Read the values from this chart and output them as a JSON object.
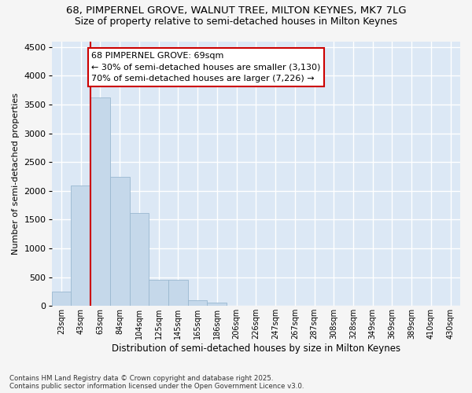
{
  "title1": "68, PIMPERNEL GROVE, WALNUT TREE, MILTON KEYNES, MK7 7LG",
  "title2": "Size of property relative to semi-detached houses in Milton Keynes",
  "xlabel": "Distribution of semi-detached houses by size in Milton Keynes",
  "ylabel": "Number of semi-detached properties",
  "categories": [
    "23sqm",
    "43sqm",
    "63sqm",
    "84sqm",
    "104sqm",
    "125sqm",
    "145sqm",
    "165sqm",
    "186sqm",
    "206sqm",
    "226sqm",
    "247sqm",
    "267sqm",
    "287sqm",
    "308sqm",
    "328sqm",
    "349sqm",
    "369sqm",
    "389sqm",
    "410sqm",
    "430sqm"
  ],
  "values": [
    250,
    2100,
    3620,
    2250,
    1610,
    450,
    450,
    100,
    55,
    5,
    0,
    0,
    0,
    0,
    0,
    0,
    0,
    0,
    0,
    0,
    0
  ],
  "bar_color": "#c5d8ea",
  "bar_edge_color": "#9ab8d0",
  "plot_bg_color": "#dce8f5",
  "fig_bg_color": "#f5f5f5",
  "grid_color": "#ffffff",
  "annotation_title": "68 PIMPERNEL GROVE: 69sqm",
  "annotation_line1": "← 30% of semi-detached houses are smaller (3,130)",
  "annotation_line2": "70% of semi-detached houses are larger (7,226) →",
  "vline_pos": 1.5,
  "vline_color": "#cc0000",
  "ylim_max": 4600,
  "yticks": [
    0,
    500,
    1000,
    1500,
    2000,
    2500,
    3000,
    3500,
    4000,
    4500
  ],
  "footer": "Contains HM Land Registry data © Crown copyright and database right 2025.\nContains public sector information licensed under the Open Government Licence v3.0."
}
